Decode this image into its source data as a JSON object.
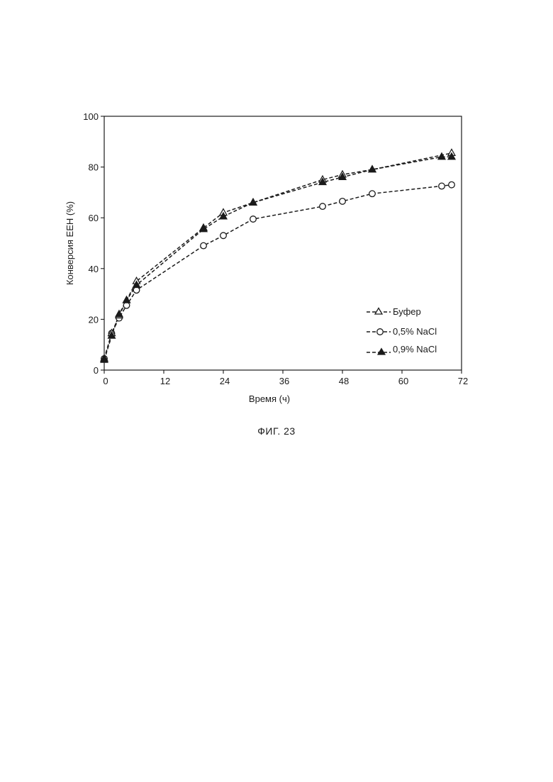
{
  "caption": "ФИГ. 23",
  "chart_data": {
    "type": "line",
    "xlabel": "Время (ч)",
    "ylabel": "Конверсия ЕЕН (%)",
    "xlim": [
      0,
      72
    ],
    "ylim": [
      0,
      100
    ],
    "xticks": [
      "0",
      "12",
      "24",
      "36",
      "48",
      "60",
      "72"
    ],
    "yticks": [
      "0",
      "20",
      "40",
      "60",
      "80",
      "100"
    ],
    "grid": false,
    "legend_position": "bottom-right",
    "series": [
      {
        "name": "Буфер",
        "marker": "open-triangle",
        "points": [
          [
            0,
            4.5
          ],
          [
            1.5,
            14.5
          ],
          [
            3,
            21.5
          ],
          [
            4.5,
            27.5
          ],
          [
            6.5,
            35
          ],
          [
            20,
            56
          ],
          [
            24,
            62
          ],
          [
            30,
            66
          ],
          [
            44,
            75
          ],
          [
            48,
            77
          ],
          [
            54,
            79
          ],
          [
            70,
            85.5
          ]
        ]
      },
      {
        "name": "0,5% NaCl",
        "marker": "open-circle",
        "points": [
          [
            0,
            4.5
          ],
          [
            1.5,
            14.5
          ],
          [
            3,
            20.5
          ],
          [
            4.5,
            25.5
          ],
          [
            6.5,
            31.5
          ],
          [
            20,
            49
          ],
          [
            24,
            53
          ],
          [
            30,
            59.5
          ],
          [
            44,
            64.5
          ],
          [
            48,
            66.5
          ],
          [
            54,
            69.5
          ],
          [
            68,
            72.5
          ],
          [
            70,
            73
          ]
        ]
      },
      {
        "name": "0,9% NaCl",
        "marker": "filled-triangle",
        "points": [
          [
            0,
            4
          ],
          [
            1.5,
            13.5
          ],
          [
            3,
            22
          ],
          [
            4.5,
            27.5
          ],
          [
            6.5,
            33.5
          ],
          [
            20,
            55.5
          ],
          [
            24,
            60.5
          ],
          [
            30,
            66
          ],
          [
            44,
            74
          ],
          [
            48,
            76
          ],
          [
            54,
            79
          ],
          [
            68,
            84
          ],
          [
            70,
            84
          ]
        ]
      }
    ]
  }
}
